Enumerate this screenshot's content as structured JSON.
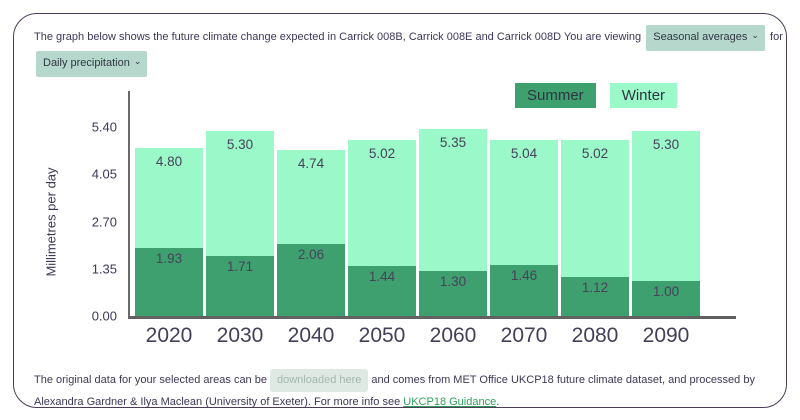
{
  "header": {
    "intro_text": "The graph below shows the future climate change expected in Carrick 008B, Carrick 008E and Carrick 008D You are viewing",
    "view_select_value": "Seasonal averages",
    "for_text": "for",
    "metric_select_value": "Daily precipitation",
    "chevron": "⌄"
  },
  "chart_data": {
    "type": "bar",
    "bar_style": "overlaid",
    "categories": [
      "2020",
      "2030",
      "2040",
      "2050",
      "2060",
      "2070",
      "2080",
      "2090"
    ],
    "series": [
      {
        "name": "Summer",
        "color": "#3fa06f",
        "values": [
          1.93,
          1.71,
          2.06,
          1.44,
          1.3,
          1.46,
          1.12,
          1.0
        ]
      },
      {
        "name": "Winter",
        "color": "#9af8c9",
        "values": [
          4.8,
          5.3,
          4.74,
          5.02,
          5.35,
          5.04,
          5.02,
          5.3
        ]
      }
    ],
    "title": "",
    "xlabel": "",
    "ylabel": "Millimetres per day",
    "yticks": [
      "0.00",
      "1.35",
      "2.70",
      "4.05",
      "5.40"
    ],
    "ylim": [
      0,
      5.4
    ],
    "grid": false,
    "legend_position": "top-right",
    "value_labels": "two_decimals"
  },
  "footer": {
    "text_before_download": "The original data for your selected areas can be",
    "download_label": "downloaded here",
    "text_middle": "and comes from MET Office UKCP18 future climate dataset, and processed by Alexandra Gardner & Ilya Maclean (University of Exeter). For more info see",
    "link_label": "UKCP18 Guidance",
    "text_after_link": "."
  },
  "colors": {
    "summer": "#3fa06f",
    "winter": "#9af8c9",
    "select_bg": "#b6d7cc",
    "card_border": "#4c3d57",
    "link_green": "#2f9f5e",
    "text": "#3d3757"
  }
}
